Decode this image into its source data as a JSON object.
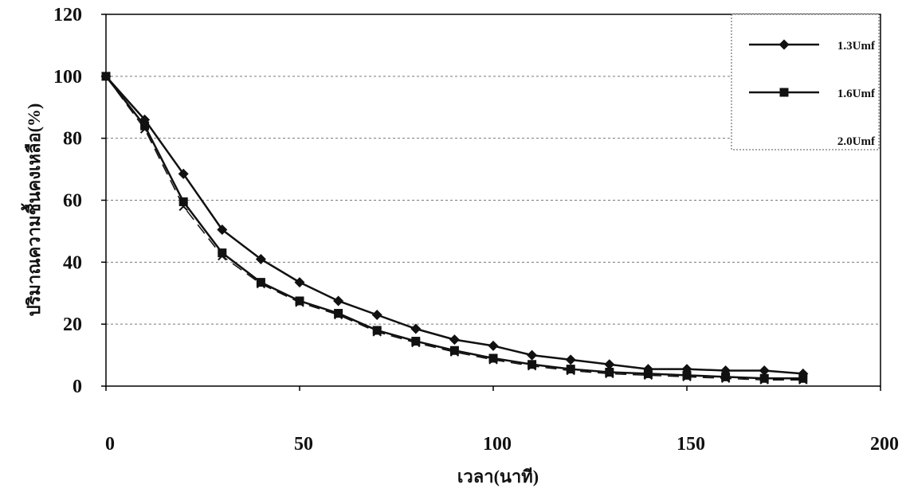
{
  "chart_data": {
    "type": "line",
    "title": "",
    "xlabel": "เวลา(นาที)",
    "ylabel": "ปริมาณความชื้นคงเหลือ(%)",
    "xlim": [
      0,
      200
    ],
    "ylim": [
      0,
      120
    ],
    "x_ticks": [
      0,
      50,
      100,
      150,
      200
    ],
    "y_ticks": [
      0,
      20,
      40,
      60,
      80,
      100,
      120
    ],
    "grid": true,
    "legend_position": "top-right",
    "x": [
      0,
      10,
      20,
      30,
      40,
      50,
      60,
      70,
      80,
      90,
      100,
      110,
      120,
      130,
      140,
      150,
      160,
      170,
      180
    ],
    "series": [
      {
        "name": "1.3Umf",
        "marker": "diamond",
        "values": [
          100,
          86,
          68.5,
          50.5,
          41,
          33.5,
          27.5,
          23,
          18.5,
          15,
          13,
          10,
          8.5,
          7,
          5.5,
          5.5,
          5,
          5,
          4
        ]
      },
      {
        "name": "1.6Umf",
        "marker": "square",
        "values": [
          100,
          84,
          59.5,
          43,
          33.5,
          27.5,
          23.5,
          18,
          14.5,
          11.5,
          9,
          7,
          5.5,
          4.5,
          4,
          3.5,
          3,
          2.5,
          2.5
        ]
      },
      {
        "name": "2.0Umf",
        "marker": "cross",
        "values": [
          100,
          83,
          58,
          42,
          33,
          27,
          23,
          17.5,
          14,
          11,
          8.5,
          6.5,
          5,
          4,
          3.5,
          3,
          2.5,
          2,
          2
        ]
      }
    ]
  }
}
